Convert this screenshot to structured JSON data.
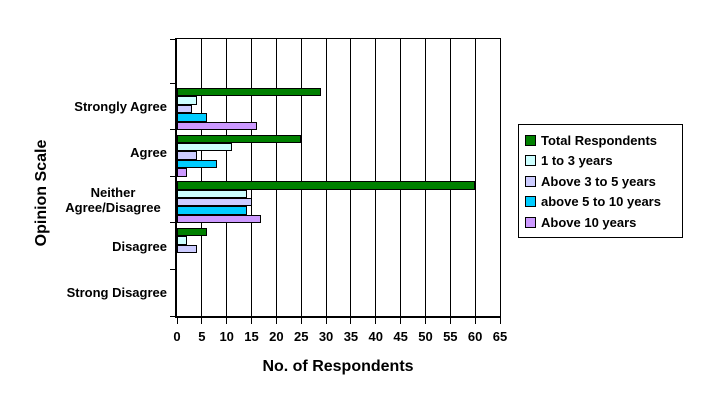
{
  "chart_data": {
    "type": "bar",
    "orientation": "horizontal",
    "xlabel": "No. of Respondents",
    "ylabel": "Opinion Scale",
    "xlim": [
      0,
      65
    ],
    "xtick_step": 5,
    "grid": "vertical",
    "legend_position": "right",
    "plot_background": "#ffffff",
    "categories": [
      "Strongly Agree",
      "Agree",
      "Neither Agree/Disagree",
      "Disagree",
      "Strong Disagree"
    ],
    "series": [
      {
        "name": "Total Respondents",
        "color": "#008000",
        "values": [
          29,
          25,
          60,
          6,
          0
        ]
      },
      {
        "name": "1 to 3 years",
        "color": "#CCFFFF",
        "values": [
          4,
          11,
          14,
          2,
          0
        ]
      },
      {
        "name": "Above 3 to 5 years",
        "color": "#CCCCFF",
        "values": [
          3,
          4,
          15,
          4,
          0
        ]
      },
      {
        "name": "above 5 to 10 years",
        "color": "#00CCFF",
        "values": [
          6,
          8,
          14,
          0,
          0
        ]
      },
      {
        "name": "Above 10 years",
        "color": "#CC99FF",
        "values": [
          16,
          2,
          17,
          0,
          0
        ]
      }
    ]
  }
}
